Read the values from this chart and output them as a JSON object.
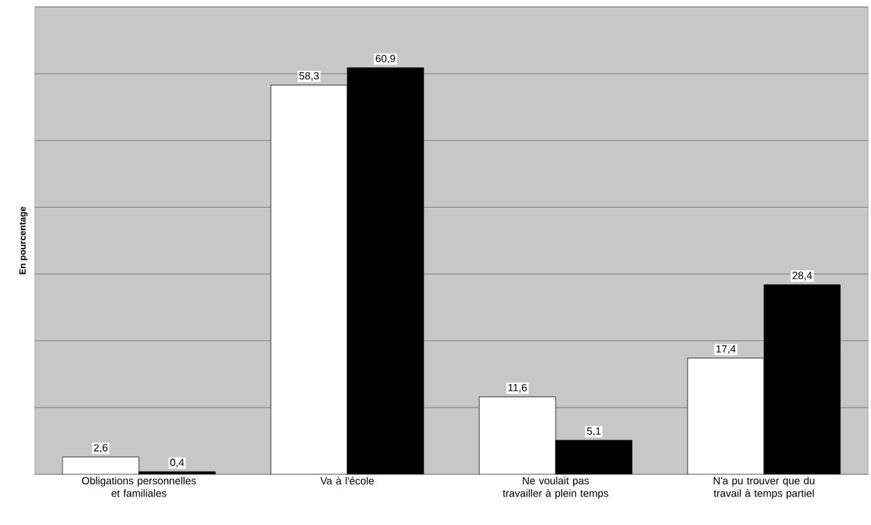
{
  "chart_data": {
    "type": "bar",
    "ylabel": "En pourcentage",
    "categories": [
      "Obligations personnelles et familiales",
      "Va à l'école",
      "Ne voulait pas travailler à plein temps",
      "N'a pu trouver que du travail à temps partiel"
    ],
    "series": [
      {
        "color": "#ffffff",
        "values": [
          2.6,
          58.3,
          11.6,
          17.4
        ],
        "value_labels": [
          "2,6",
          "58,3",
          "11,6",
          "17,4"
        ]
      },
      {
        "color": "#000000",
        "values": [
          0.4,
          60.9,
          5.1,
          28.4
        ],
        "value_labels": [
          "0,4",
          "60,9",
          "5,1",
          "28,4"
        ]
      }
    ],
    "ylim": [
      0,
      70
    ],
    "yticks": [
      {
        "value": 0,
        "label": null
      },
      {
        "value": 10,
        "label": null
      },
      {
        "value": 20,
        "label": null
      },
      {
        "value": 30,
        "label": null
      },
      {
        "value": 40,
        "label": null
      },
      {
        "value": 50,
        "label": null
      },
      {
        "value": 60,
        "label": null
      },
      {
        "value": 70,
        "label": null
      }
    ],
    "grid": "y",
    "tick_labels": "x"
  }
}
